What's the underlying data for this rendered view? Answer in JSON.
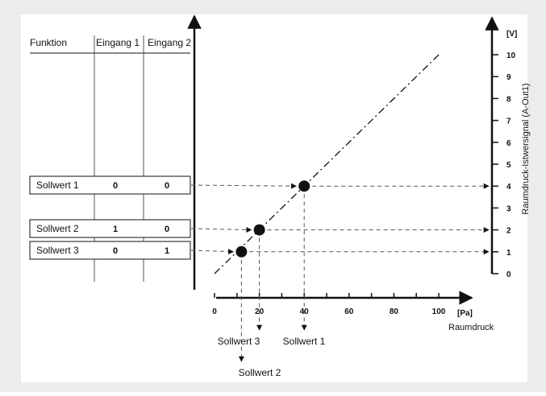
{
  "colors": {
    "panel_bg": "#ececec",
    "canvas_bg": "#ffffff",
    "ink": "#111111",
    "dash": "#555555"
  },
  "header_strip_text": "",
  "table": {
    "headers": {
      "function": "Funktion",
      "input1": "Eingang 1",
      "input2": "Eingang 2"
    },
    "rows": [
      {
        "label": "Sollwert 1",
        "input1": "0",
        "input2": "0"
      },
      {
        "label": "Sollwert 2",
        "input1": "1",
        "input2": "0"
      },
      {
        "label": "Sollwert 3",
        "input1": "0",
        "input2": "1"
      }
    ]
  },
  "axes": {
    "x": {
      "unit": "[Pa]",
      "label": "Raumdruck",
      "ticks": [
        "0",
        "20",
        "40",
        "60",
        "80",
        "100"
      ],
      "range": [
        0,
        100
      ]
    },
    "y": {
      "unit": "[V]",
      "label": "Raumdruck-Istwersignal (A-Out1)",
      "ticks": [
        "0",
        "1",
        "2",
        "3",
        "4",
        "5",
        "6",
        "7",
        "8",
        "9",
        "10"
      ],
      "range": [
        0,
        10
      ]
    }
  },
  "line": {
    "description_free": true,
    "x": [
      0,
      100
    ],
    "y": [
      0,
      10
    ]
  },
  "points": [
    {
      "name": "Sollwert 1",
      "pa": 40,
      "v": 4
    },
    {
      "name": "Sollwert 2",
      "pa": 20,
      "v": 2
    },
    {
      "name": "Sollwert 3",
      "pa": 12,
      "v": 1
    }
  ],
  "below_labels": [
    "Sollwert 3",
    "Sollwert 1",
    "Sollwert 2"
  ]
}
